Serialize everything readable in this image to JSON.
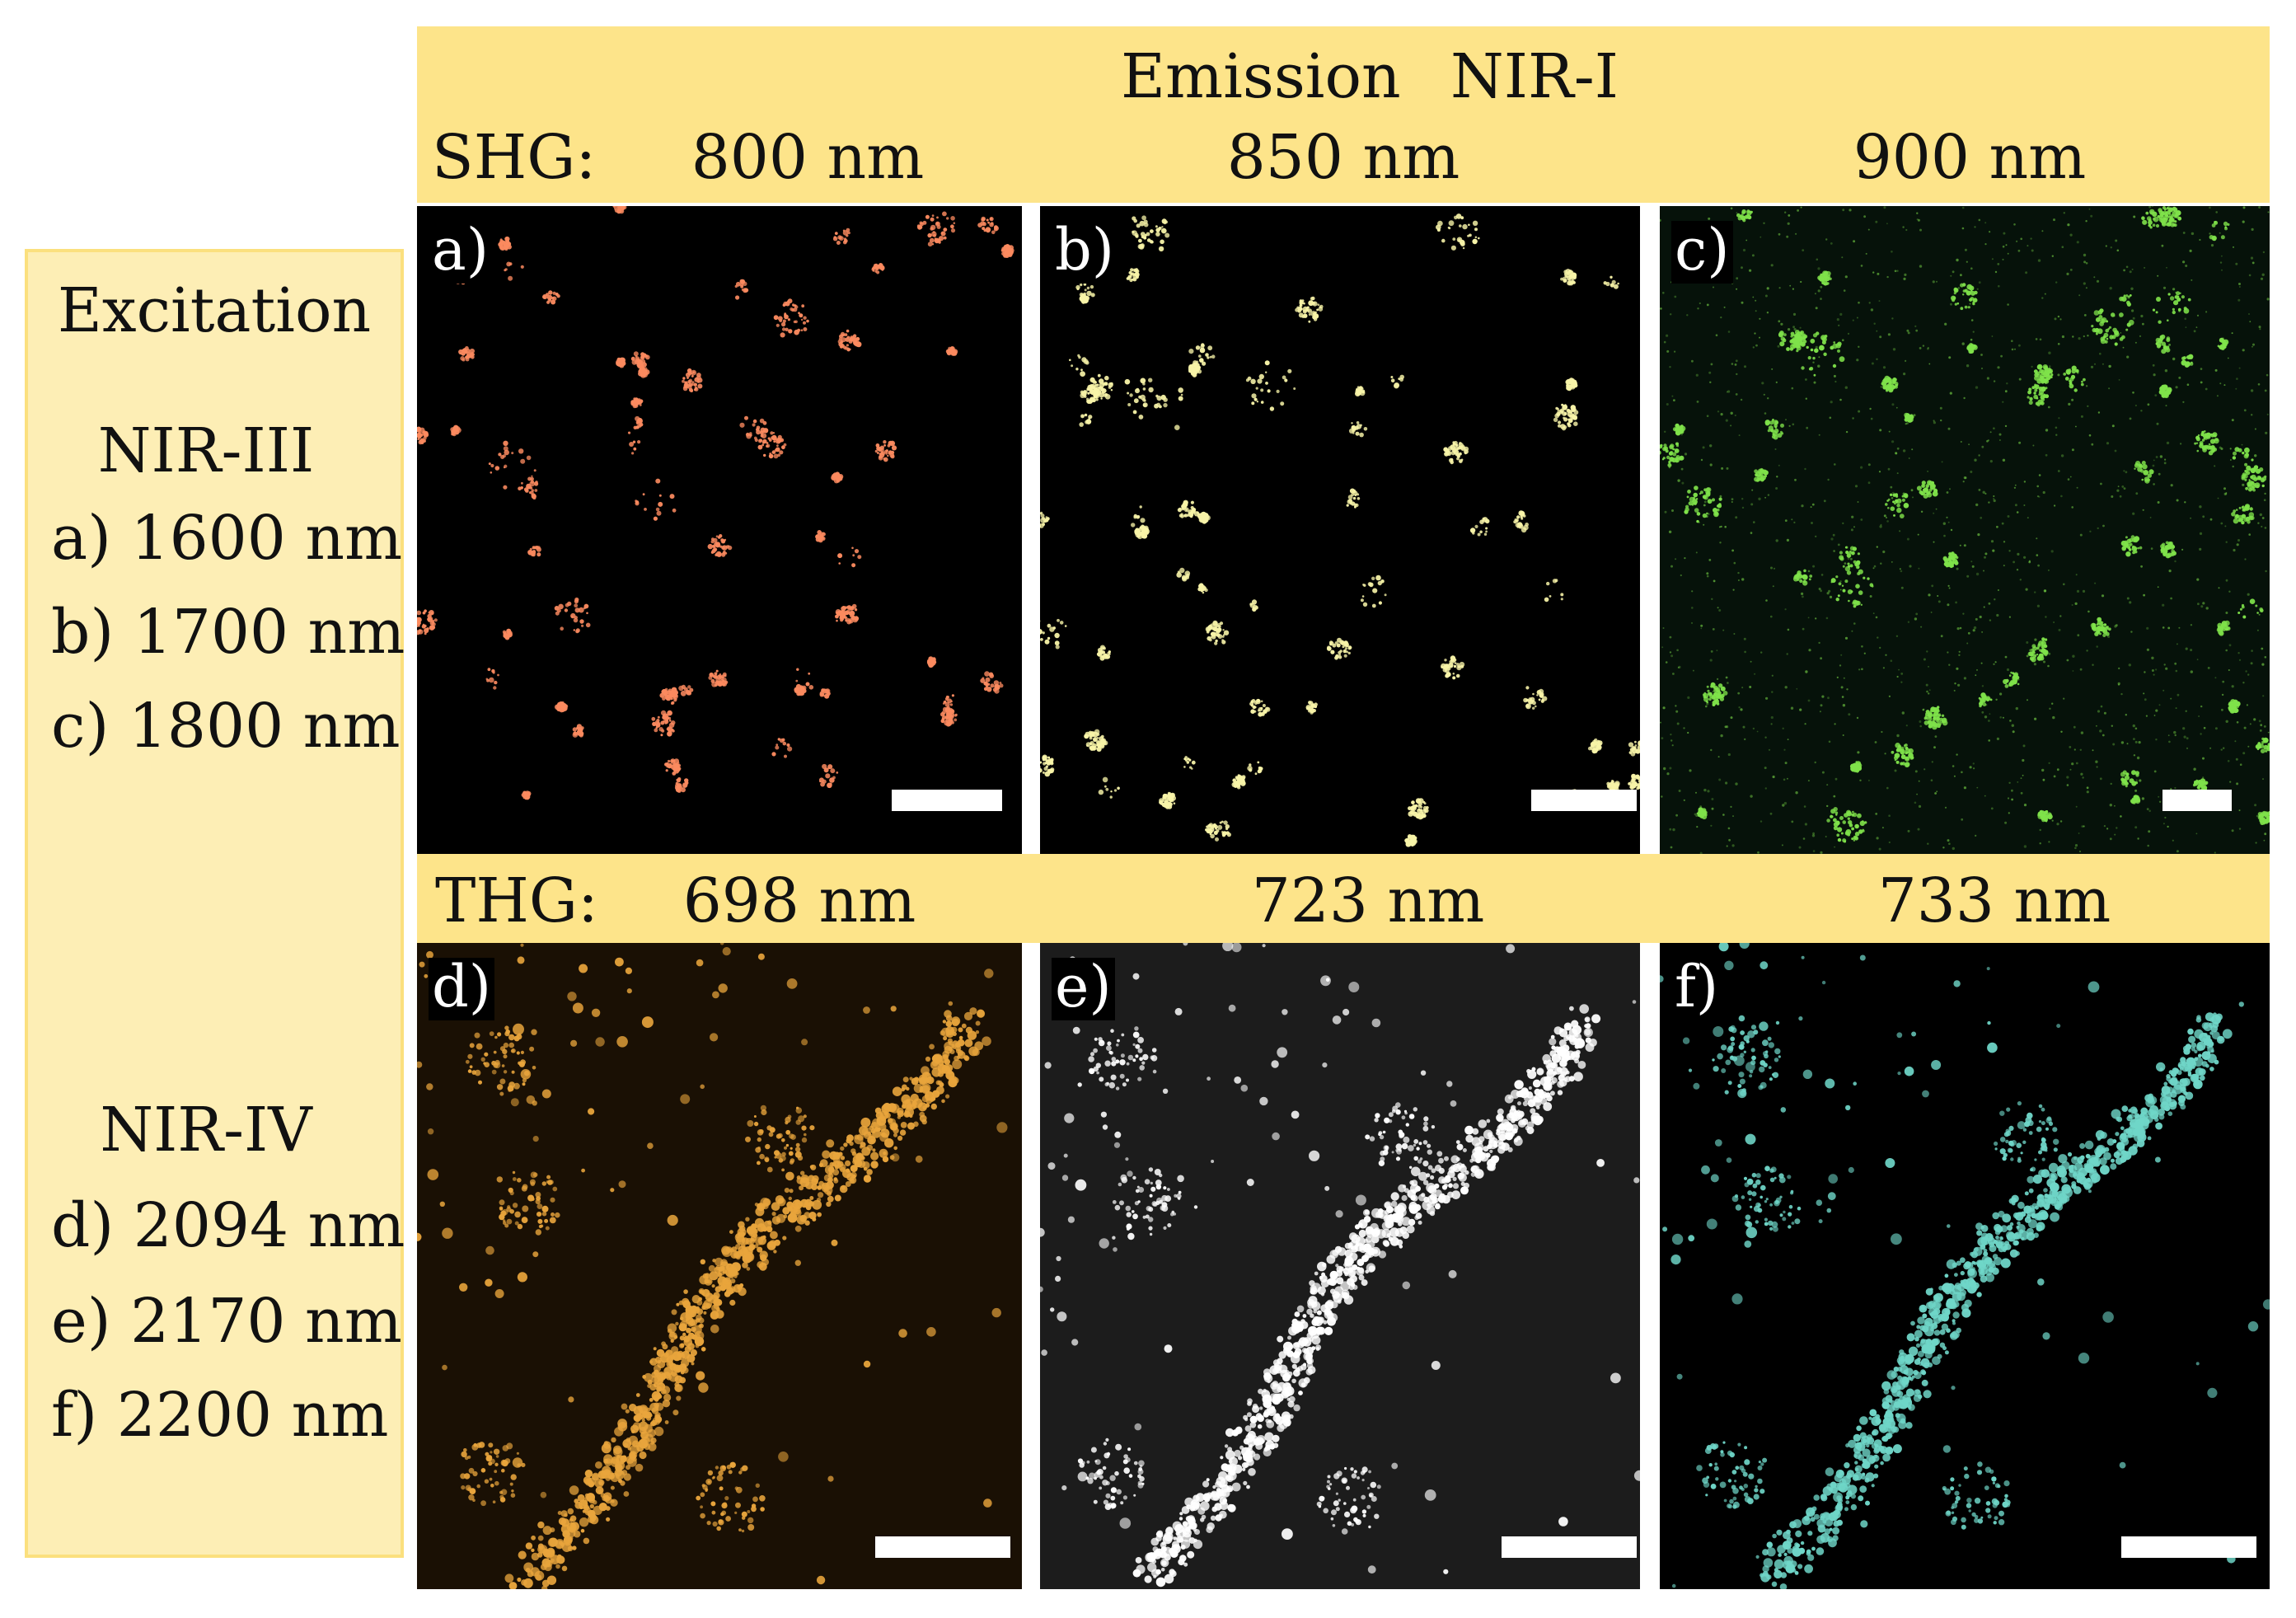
{
  "header": {
    "emission_label": "Emission",
    "emission_band": "NIR-I",
    "shg_label": "SHG:",
    "shg_wavelengths": [
      "800 nm",
      "850 nm",
      "900 nm"
    ],
    "thg_label": "THG:",
    "thg_wavelengths": [
      "698 nm",
      "723 nm",
      "733 nm"
    ]
  },
  "excitation": {
    "title": "Excitation",
    "groups": [
      {
        "band": "NIR-III",
        "items": [
          "a) 1600 nm",
          "b) 1700 nm",
          "c) 1800 nm"
        ]
      },
      {
        "band": "NIR-IV",
        "items": [
          "d) 2094 nm",
          "e) 2170 nm",
          "f) 2200 nm"
        ]
      }
    ]
  },
  "panels": [
    {
      "label": "a)",
      "color": "#fb8a5f",
      "background": "#000000",
      "kind": "clusters"
    },
    {
      "label": "b)",
      "color": "#f8f4a8",
      "background": "#000000",
      "kind": "clusters"
    },
    {
      "label": "c)",
      "color": "#7fe24a",
      "background": "#06120a",
      "kind": "clusters-noise"
    },
    {
      "label": "d)",
      "color": "#e9a53c",
      "background": "#1a1004",
      "kind": "beads"
    },
    {
      "label": "e)",
      "color": "#ffffff",
      "background": "#1c1c1c",
      "kind": "beads"
    },
    {
      "label": "f)",
      "color": "#6fd6c8",
      "background": "#000000",
      "kind": "beads"
    }
  ]
}
